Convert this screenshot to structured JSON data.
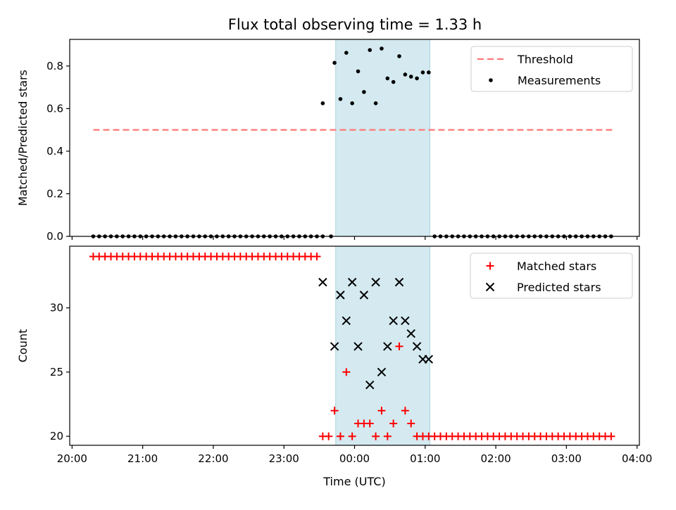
{
  "title": "Flux total observing time = 1.33 h",
  "colors": {
    "threshold": "#ff7777",
    "measurement": "#000000",
    "matched": "#ff0000",
    "predicted": "#000000",
    "highlight_fill": "#d4eaf0",
    "highlight_edge": "#a9d3de"
  },
  "chart_data": [
    {
      "type": "scatter",
      "ylabel": "Matched/Predicted stars",
      "ylim": [
        0,
        0.925
      ],
      "yticks": [
        0.0,
        0.2,
        0.4,
        0.6,
        0.8
      ],
      "ytick_labels": [
        "0.0",
        "0.2",
        "0.4",
        "0.6",
        "0.8"
      ],
      "legend_position": "top-right",
      "highlight_span": {
        "start": "23:44",
        "end": "01:04"
      },
      "threshold": {
        "name": "Threshold",
        "value": 0.5,
        "x_start": "20:18",
        "x_end": "03:40"
      },
      "series": [
        {
          "name": "Measurements",
          "points": [
            [
              "20:18",
              0
            ],
            [
              "20:23",
              0
            ],
            [
              "20:28",
              0
            ],
            [
              "20:33",
              0
            ],
            [
              "20:38",
              0
            ],
            [
              "20:43",
              0
            ],
            [
              "20:48",
              0
            ],
            [
              "20:53",
              0
            ],
            [
              "20:58",
              0
            ],
            [
              "21:03",
              0
            ],
            [
              "21:08",
              0
            ],
            [
              "21:13",
              0
            ],
            [
              "21:18",
              0
            ],
            [
              "21:23",
              0
            ],
            [
              "21:28",
              0
            ],
            [
              "21:33",
              0
            ],
            [
              "21:38",
              0
            ],
            [
              "21:43",
              0
            ],
            [
              "21:48",
              0
            ],
            [
              "21:53",
              0
            ],
            [
              "21:58",
              0
            ],
            [
              "22:03",
              0
            ],
            [
              "22:08",
              0
            ],
            [
              "22:13",
              0
            ],
            [
              "22:18",
              0
            ],
            [
              "22:23",
              0
            ],
            [
              "22:28",
              0
            ],
            [
              "22:33",
              0
            ],
            [
              "22:38",
              0
            ],
            [
              "22:43",
              0
            ],
            [
              "22:48",
              0
            ],
            [
              "22:53",
              0
            ],
            [
              "22:58",
              0
            ],
            [
              "23:03",
              0
            ],
            [
              "23:08",
              0
            ],
            [
              "23:13",
              0
            ],
            [
              "23:18",
              0
            ],
            [
              "23:23",
              0
            ],
            [
              "23:28",
              0
            ],
            [
              "23:33",
              0
            ],
            [
              "23:40",
              0
            ],
            [
              "23:33",
              0.625
            ],
            [
              "23:43",
              0.815
            ],
            [
              "23:48",
              0.645
            ],
            [
              "23:53",
              0.862
            ],
            [
              "23:58",
              0.625
            ],
            [
              "00:03",
              0.775
            ],
            [
              "00:08",
              0.678
            ],
            [
              "00:13",
              0.875
            ],
            [
              "00:18",
              0.625
            ],
            [
              "00:23",
              0.882
            ],
            [
              "00:28",
              0.742
            ],
            [
              "00:33",
              0.725
            ],
            [
              "00:38",
              0.846
            ],
            [
              "00:43",
              0.76
            ],
            [
              "00:48",
              0.75
            ],
            [
              "00:53",
              0.742
            ],
            [
              "00:58",
              0.77
            ],
            [
              "01:03",
              0.77
            ],
            [
              "01:08",
              0
            ],
            [
              "01:13",
              0
            ],
            [
              "01:18",
              0
            ],
            [
              "01:23",
              0
            ],
            [
              "01:28",
              0
            ],
            [
              "01:33",
              0
            ],
            [
              "01:38",
              0
            ],
            [
              "01:43",
              0
            ],
            [
              "01:48",
              0
            ],
            [
              "01:53",
              0
            ],
            [
              "01:58",
              0
            ],
            [
              "02:03",
              0
            ],
            [
              "02:08",
              0
            ],
            [
              "02:13",
              0
            ],
            [
              "02:18",
              0
            ],
            [
              "02:23",
              0
            ],
            [
              "02:28",
              0
            ],
            [
              "02:33",
              0
            ],
            [
              "02:38",
              0
            ],
            [
              "02:43",
              0
            ],
            [
              "02:48",
              0
            ],
            [
              "02:53",
              0
            ],
            [
              "02:58",
              0
            ],
            [
              "03:03",
              0
            ],
            [
              "03:08",
              0
            ],
            [
              "03:13",
              0
            ],
            [
              "03:18",
              0
            ],
            [
              "03:23",
              0
            ],
            [
              "03:28",
              0
            ],
            [
              "03:33",
              0
            ],
            [
              "03:38",
              0
            ]
          ]
        }
      ]
    },
    {
      "type": "scatter",
      "xlabel": "Time (UTC)",
      "ylabel": "Count",
      "ylim": [
        19.3,
        34.8
      ],
      "yticks": [
        20,
        25,
        30
      ],
      "ytick_labels": [
        "20",
        "25",
        "30"
      ],
      "xlim": [
        "19:58",
        "04:02"
      ],
      "xticks": [
        "20:00",
        "21:00",
        "22:00",
        "23:00",
        "00:00",
        "01:00",
        "02:00",
        "03:00",
        "04:00"
      ],
      "xtick_labels": [
        "20:00",
        "21:00",
        "22:00",
        "23:00",
        "00:00",
        "01:00",
        "02:00",
        "03:00",
        "04:00"
      ],
      "legend_position": "top-right",
      "highlight_span": {
        "start": "23:44",
        "end": "01:04"
      },
      "series": [
        {
          "name": "Matched stars",
          "marker": "plus",
          "points": [
            [
              "20:18",
              34
            ],
            [
              "20:23",
              34
            ],
            [
              "20:28",
              34
            ],
            [
              "20:33",
              34
            ],
            [
              "20:38",
              34
            ],
            [
              "20:43",
              34
            ],
            [
              "20:48",
              34
            ],
            [
              "20:53",
              34
            ],
            [
              "20:58",
              34
            ],
            [
              "21:03",
              34
            ],
            [
              "21:08",
              34
            ],
            [
              "21:13",
              34
            ],
            [
              "21:18",
              34
            ],
            [
              "21:23",
              34
            ],
            [
              "21:28",
              34
            ],
            [
              "21:33",
              34
            ],
            [
              "21:38",
              34
            ],
            [
              "21:43",
              34
            ],
            [
              "21:48",
              34
            ],
            [
              "21:53",
              34
            ],
            [
              "21:58",
              34
            ],
            [
              "22:03",
              34
            ],
            [
              "22:08",
              34
            ],
            [
              "22:13",
              34
            ],
            [
              "22:18",
              34
            ],
            [
              "22:23",
              34
            ],
            [
              "22:28",
              34
            ],
            [
              "22:33",
              34
            ],
            [
              "22:38",
              34
            ],
            [
              "22:43",
              34
            ],
            [
              "22:48",
              34
            ],
            [
              "22:53",
              34
            ],
            [
              "22:58",
              34
            ],
            [
              "23:03",
              34
            ],
            [
              "23:08",
              34
            ],
            [
              "23:13",
              34
            ],
            [
              "23:18",
              34
            ],
            [
              "23:23",
              34
            ],
            [
              "23:28",
              34
            ],
            [
              "23:33",
              20
            ],
            [
              "23:38",
              20
            ],
            [
              "23:43",
              22
            ],
            [
              "23:48",
              20
            ],
            [
              "23:53",
              25
            ],
            [
              "23:58",
              20
            ],
            [
              "00:03",
              21
            ],
            [
              "00:08",
              21
            ],
            [
              "00:13",
              21
            ],
            [
              "00:18",
              20
            ],
            [
              "00:23",
              22
            ],
            [
              "00:28",
              20
            ],
            [
              "00:33",
              21
            ],
            [
              "00:38",
              27
            ],
            [
              "00:43",
              22
            ],
            [
              "00:48",
              21
            ],
            [
              "00:53",
              20
            ],
            [
              "00:58",
              20
            ],
            [
              "01:03",
              20
            ],
            [
              "01:08",
              20
            ],
            [
              "01:13",
              20
            ],
            [
              "01:18",
              20
            ],
            [
              "01:23",
              20
            ],
            [
              "01:28",
              20
            ],
            [
              "01:33",
              20
            ],
            [
              "01:38",
              20
            ],
            [
              "01:43",
              20
            ],
            [
              "01:48",
              20
            ],
            [
              "01:53",
              20
            ],
            [
              "01:58",
              20
            ],
            [
              "02:03",
              20
            ],
            [
              "02:08",
              20
            ],
            [
              "02:13",
              20
            ],
            [
              "02:18",
              20
            ],
            [
              "02:23",
              20
            ],
            [
              "02:28",
              20
            ],
            [
              "02:33",
              20
            ],
            [
              "02:38",
              20
            ],
            [
              "02:43",
              20
            ],
            [
              "02:48",
              20
            ],
            [
              "02:53",
              20
            ],
            [
              "02:58",
              20
            ],
            [
              "03:03",
              20
            ],
            [
              "03:08",
              20
            ],
            [
              "03:13",
              20
            ],
            [
              "03:18",
              20
            ],
            [
              "03:23",
              20
            ],
            [
              "03:28",
              20
            ],
            [
              "03:33",
              20
            ],
            [
              "03:38",
              20
            ]
          ]
        },
        {
          "name": "Predicted stars",
          "marker": "x",
          "points": [
            [
              "23:33",
              32
            ],
            [
              "23:43",
              27
            ],
            [
              "23:48",
              31
            ],
            [
              "23:53",
              29
            ],
            [
              "23:58",
              32
            ],
            [
              "00:03",
              27
            ],
            [
              "00:08",
              31
            ],
            [
              "00:13",
              24
            ],
            [
              "00:18",
              32
            ],
            [
              "00:23",
              25
            ],
            [
              "00:28",
              27
            ],
            [
              "00:33",
              29
            ],
            [
              "00:38",
              32
            ],
            [
              "00:43",
              29
            ],
            [
              "00:48",
              28
            ],
            [
              "00:53",
              27
            ],
            [
              "00:58",
              26
            ],
            [
              "01:03",
              26
            ]
          ]
        }
      ]
    }
  ]
}
